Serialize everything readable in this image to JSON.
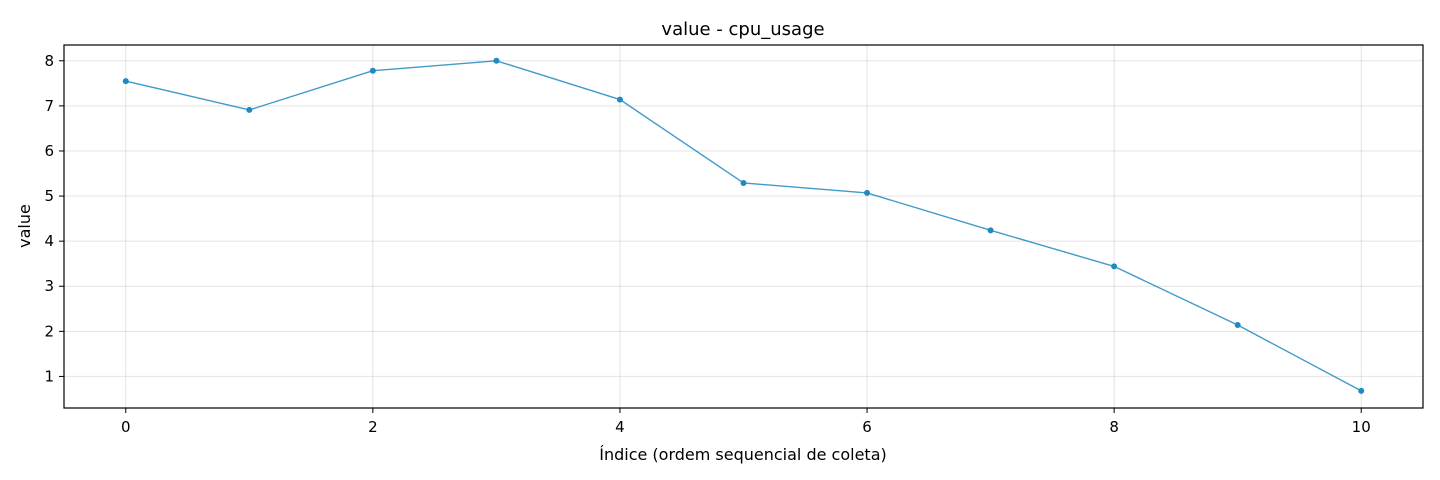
{
  "chart_data": {
    "type": "line",
    "title": "value - cpu_usage",
    "xlabel": "Índice (ordem sequencial de coleta)",
    "ylabel": "value",
    "xlim": [
      -0.5,
      10.5
    ],
    "ylim": [
      0.3,
      8.35
    ],
    "xticks": [
      0,
      2,
      4,
      6,
      8,
      10
    ],
    "yticks": [
      1,
      2,
      3,
      4,
      5,
      6,
      7,
      8
    ],
    "grid": true,
    "x": [
      0,
      1,
      2,
      3,
      4,
      5,
      6,
      7,
      8,
      9,
      10
    ],
    "series": [
      {
        "values": [
          7.55,
          6.91,
          7.78,
          8.0,
          7.14,
          5.29,
          5.07,
          4.24,
          3.44,
          2.14,
          0.68
        ],
        "color": "#1f8ac0",
        "marker": "circle"
      }
    ]
  }
}
